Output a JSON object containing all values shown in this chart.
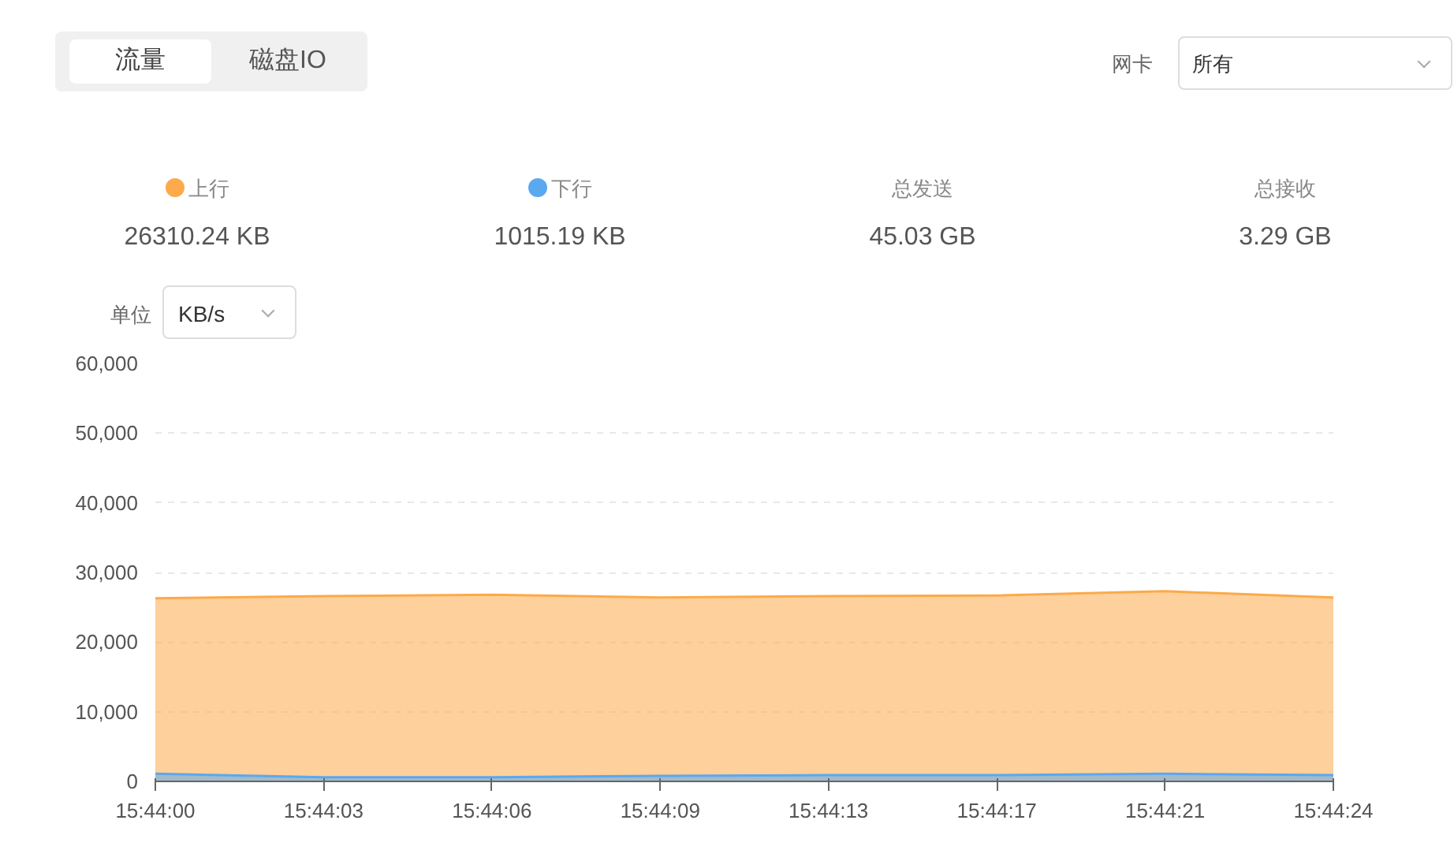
{
  "chart_data": {
    "type": "area",
    "categories": [
      "15:44:00",
      "15:44:03",
      "15:44:06",
      "15:44:09",
      "15:44:13",
      "15:44:17",
      "15:44:21",
      "15:44:24"
    ],
    "series": [
      {
        "name": "上行",
        "color": "#fcaa4a",
        "values": [
          26300,
          26600,
          26800,
          26400,
          26600,
          26700,
          27300,
          26400
        ]
      },
      {
        "name": "下行",
        "color": "#5aa8f0",
        "values": [
          1100,
          600,
          600,
          800,
          900,
          900,
          1100,
          900
        ]
      }
    ],
    "ylim": [
      0,
      60000
    ],
    "yticks": [
      {
        "value": 0,
        "label": "0"
      },
      {
        "value": 10000,
        "label": "10,000"
      },
      {
        "value": 20000,
        "label": "20,000"
      },
      {
        "value": 30000,
        "label": "30,000"
      },
      {
        "value": 40000,
        "label": "40,000"
      },
      {
        "value": 50000,
        "label": "50,000"
      },
      {
        "value": 60000,
        "label": "60,000"
      }
    ],
    "grid": "y",
    "legend": "top",
    "annotations": [
      "流量",
      "磁盘IO",
      "网卡",
      "所有",
      "26310.24 KB",
      "1015.19 KB",
      "总发送",
      "45.03 GB",
      "总接收",
      "3.29 GB",
      "单位",
      "KB/s"
    ]
  }
}
